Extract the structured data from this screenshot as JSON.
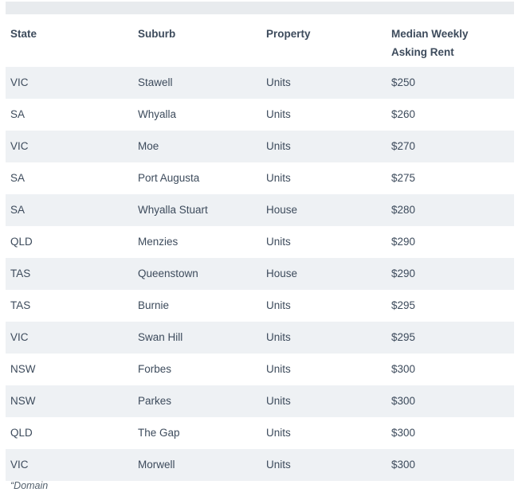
{
  "chart_data": {
    "type": "table",
    "title": "",
    "columns": [
      "State",
      "Suburb",
      "Property",
      "Median Weekly Asking Rent"
    ],
    "rows": [
      {
        "state": "VIC",
        "suburb": "Stawell",
        "property": "Units",
        "rent": "$250"
      },
      {
        "state": "SA",
        "suburb": "Whyalla",
        "property": "Units",
        "rent": "$260"
      },
      {
        "state": "VIC",
        "suburb": "Moe",
        "property": "Units",
        "rent": "$270"
      },
      {
        "state": "SA",
        "suburb": "Port Augusta",
        "property": "Units",
        "rent": "$275"
      },
      {
        "state": "SA",
        "suburb": "Whyalla Stuart",
        "property": "House",
        "rent": "$280"
      },
      {
        "state": "QLD",
        "suburb": "Menzies",
        "property": "Units",
        "rent": "$290"
      },
      {
        "state": "TAS",
        "suburb": "Queenstown",
        "property": "House",
        "rent": "$290"
      },
      {
        "state": "TAS",
        "suburb": "Burnie",
        "property": "Units",
        "rent": "$295"
      },
      {
        "state": "VIC",
        "suburb": "Swan Hill",
        "property": "Units",
        "rent": "$295"
      },
      {
        "state": "NSW",
        "suburb": "Forbes",
        "property": "Units",
        "rent": "$300"
      },
      {
        "state": "NSW",
        "suburb": "Parkes",
        "property": "Units",
        "rent": "$300"
      },
      {
        "state": "QLD",
        "suburb": "The Gap",
        "property": "Units",
        "rent": "$300"
      },
      {
        "state": "VIC",
        "suburb": "Morwell",
        "property": "Units",
        "rent": "$300"
      }
    ],
    "source": "“Domain"
  },
  "colors": {
    "row_alternate": "#eef1f4",
    "top_bar": "#e8ebee",
    "text": "#3d4b5c",
    "source_text": "#55626e",
    "background": "#ffffff"
  }
}
